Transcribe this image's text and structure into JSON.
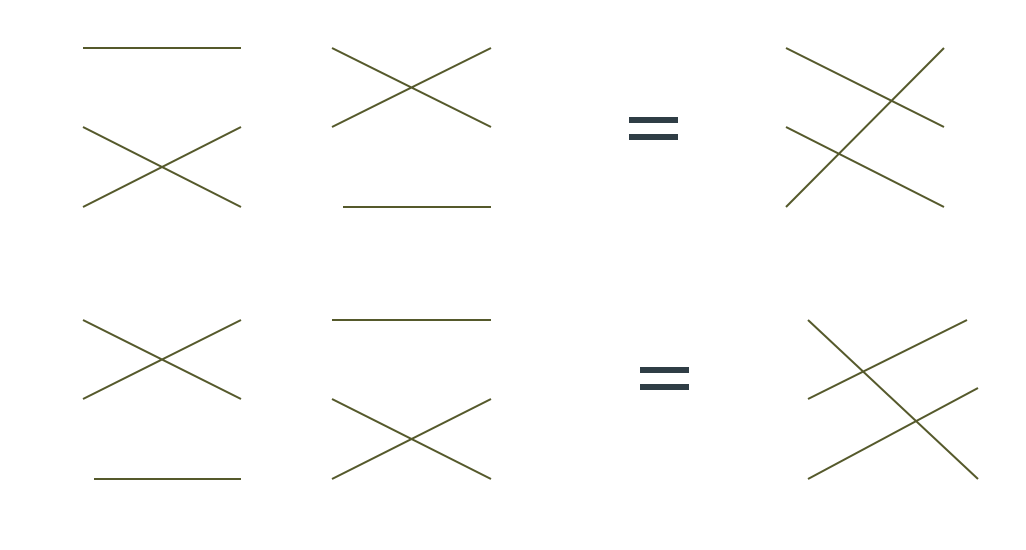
{
  "colors": {
    "background": "#ffffff",
    "strand": "#55592b",
    "equals": "#2f3d45"
  },
  "relations": [
    {
      "name": "first-identity",
      "lhs": [
        {
          "name": "braid-term-1",
          "pattern": "bar-then-cross"
        },
        {
          "name": "braid-term-2",
          "pattern": "cross-then-bar"
        }
      ],
      "operator": "equals",
      "rhs": {
        "name": "braid-product",
        "pattern": "three-strand-triangle"
      }
    },
    {
      "name": "second-identity",
      "lhs": [
        {
          "name": "braid-term-1",
          "pattern": "cross-then-bar"
        },
        {
          "name": "braid-term-2",
          "pattern": "bar-then-cross"
        }
      ],
      "operator": "equals",
      "rhs": {
        "name": "braid-product",
        "pattern": "three-strand-triangle"
      }
    }
  ]
}
